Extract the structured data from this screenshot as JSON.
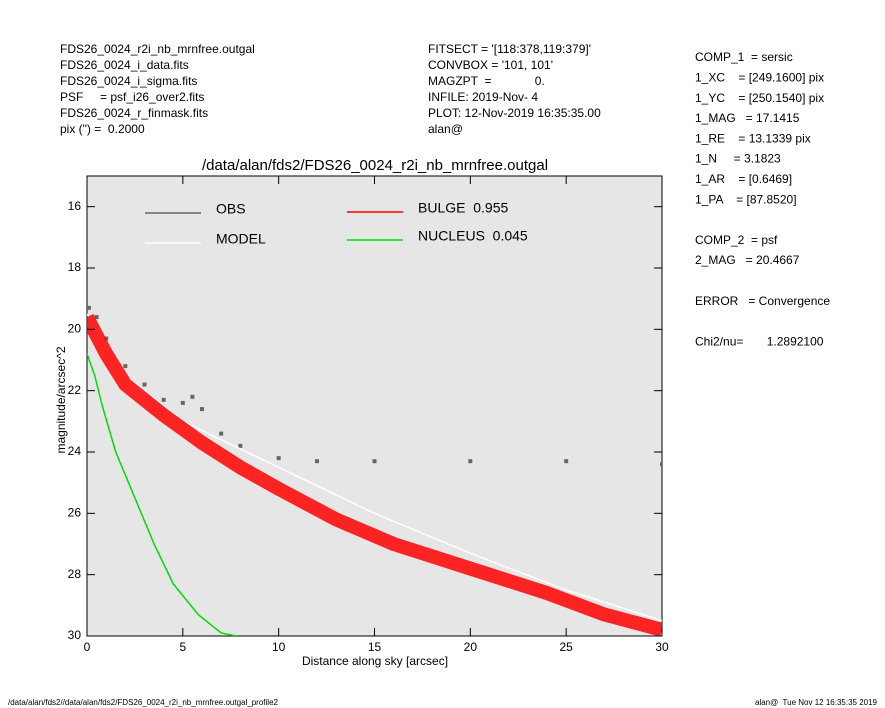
{
  "chart_data": {
    "type": "line",
    "title": "/data/alan/fds2/FDS26_0024_r2i_nb_mrnfree.outgal",
    "x_label": "Distance along sky [arcsec]",
    "y_label": "magnitude/arcsec^2",
    "xlim": [
      0,
      30
    ],
    "ylim": [
      15,
      30
    ],
    "invert_y": true,
    "xticks": [
      0,
      5,
      10,
      15,
      20,
      25,
      30
    ],
    "yticks": [
      16,
      18,
      20,
      22,
      24,
      26,
      28,
      30
    ],
    "series": [
      {
        "name": "OBS",
        "color": "#666666",
        "style": "points",
        "x": [
          0.1,
          0.5,
          1,
          2,
          3,
          4,
          5,
          5.5,
          6,
          7,
          8,
          10,
          12,
          15,
          20,
          25,
          30
        ],
        "values": [
          19.3,
          19.6,
          20.3,
          21.2,
          21.8,
          22.3,
          22.4,
          22.2,
          22.6,
          23.4,
          23.8,
          24.2,
          24.3,
          24.3,
          24.3,
          24.3,
          24.4
        ]
      },
      {
        "name": "MODEL",
        "color": "#ffffff",
        "style": "line",
        "x": [
          0,
          2,
          5,
          10,
          15,
          20,
          25,
          30
        ],
        "values": [
          19.5,
          21.5,
          23,
          24.5,
          26,
          27.3,
          28.5,
          29.5
        ]
      },
      {
        "name": "BULGE  0.955",
        "color": "#ff0000",
        "style": "band",
        "x": [
          0,
          1,
          2,
          4,
          6,
          8,
          10,
          13,
          16,
          20,
          24,
          27,
          30
        ],
        "values": [
          19.6,
          20.8,
          21.8,
          22.8,
          23.7,
          24.5,
          25.2,
          26.2,
          27,
          27.8,
          28.6,
          29.3,
          29.8
        ]
      },
      {
        "name": "NUCLEUS  0.045",
        "color": "#00dd00",
        "style": "line",
        "x": [
          0,
          0.4,
          0.8,
          1.5,
          2.5,
          3.5,
          4.5,
          5.8,
          7,
          7.8
        ],
        "values": [
          20.8,
          21.5,
          22.5,
          24,
          25.5,
          27,
          28.3,
          29.3,
          29.9,
          30
        ]
      }
    ],
    "info_left": [
      "FDS26_0024_r2i_nb_mrnfree.outgal",
      "FDS26_0024_i_data.fits",
      "FDS26_0024_i_sigma.fits",
      "PSF     = psf_i26_over2.fits",
      "FDS26_0024_r_finmask.fits",
      "pix (\") =  0.2000"
    ],
    "info_center": [
      "FITSECT = '[118:378,119:379]'",
      "CONVBOX = '101, 101'",
      "MAGZPT  =             0.",
      "INFILE: 2019-Nov- 4",
      "PLOT: 12-Nov-2019 16:35:35.00",
      "alan@"
    ],
    "info_right": [
      "COMP_1  = sersic",
      "1_XC    = [249.1600] pix",
      "1_YC    = [250.1540] pix",
      "1_MAG   = 17.1415",
      "1_RE    = 13.1339 pix",
      "1_N     = 3.1823",
      "1_AR    = [0.6469]",
      "1_PA    = [87.8520]",
      "",
      "COMP_2  = psf",
      "2_MAG   = 20.4667",
      "",
      "ERROR   = Convergence",
      "",
      "Chi2/nu=       1.2892100"
    ],
    "footer_left": "/data/alan/fds2//data/alan/fds2/FDS26_0024_r2i_nb_mrnfree.outgal_profile2",
    "footer_right": "alan@  Tue Nov 12 16:35:35 2019"
  }
}
